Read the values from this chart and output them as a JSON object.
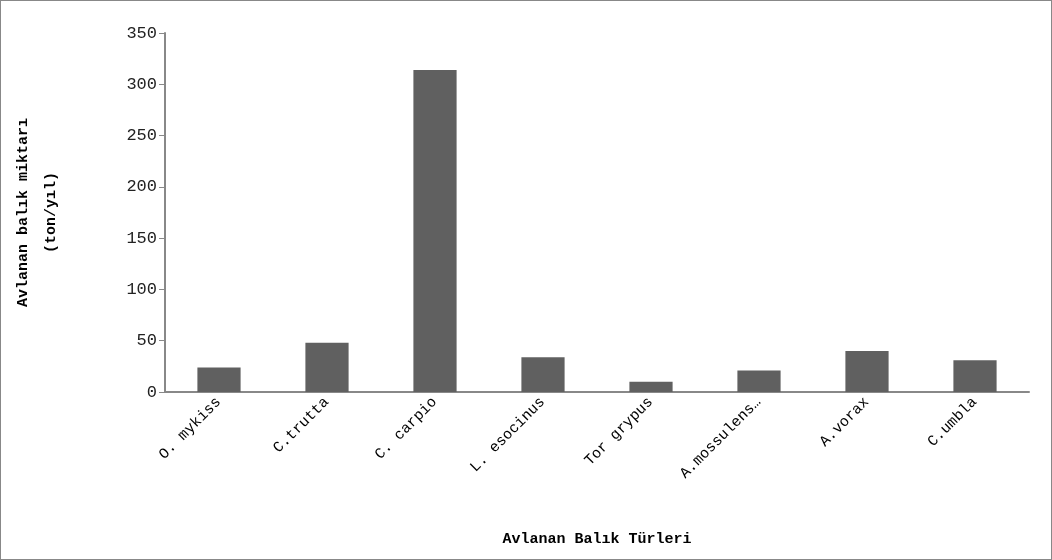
{
  "chart_data": {
    "type": "bar",
    "xlabel": "Avlanan Balık Türleri",
    "ylabel": "Avlanan balık miktarı\n(ton/yıl)",
    "categories": [
      "O. mykiss",
      "C.trutta",
      "C. carpio",
      "L. esocinus",
      "Tor grypus",
      "A.mossulens…",
      "A.vorax",
      "C.umbla"
    ],
    "series": [
      {
        "color": "#606060",
        "values": [
          24,
          48,
          314,
          34,
          10,
          21,
          40,
          31
        ]
      }
    ],
    "ylim": [
      0,
      350
    ],
    "yticks": [
      0,
      50,
      100,
      150,
      200,
      250,
      300,
      350
    ],
    "grid": false
  }
}
